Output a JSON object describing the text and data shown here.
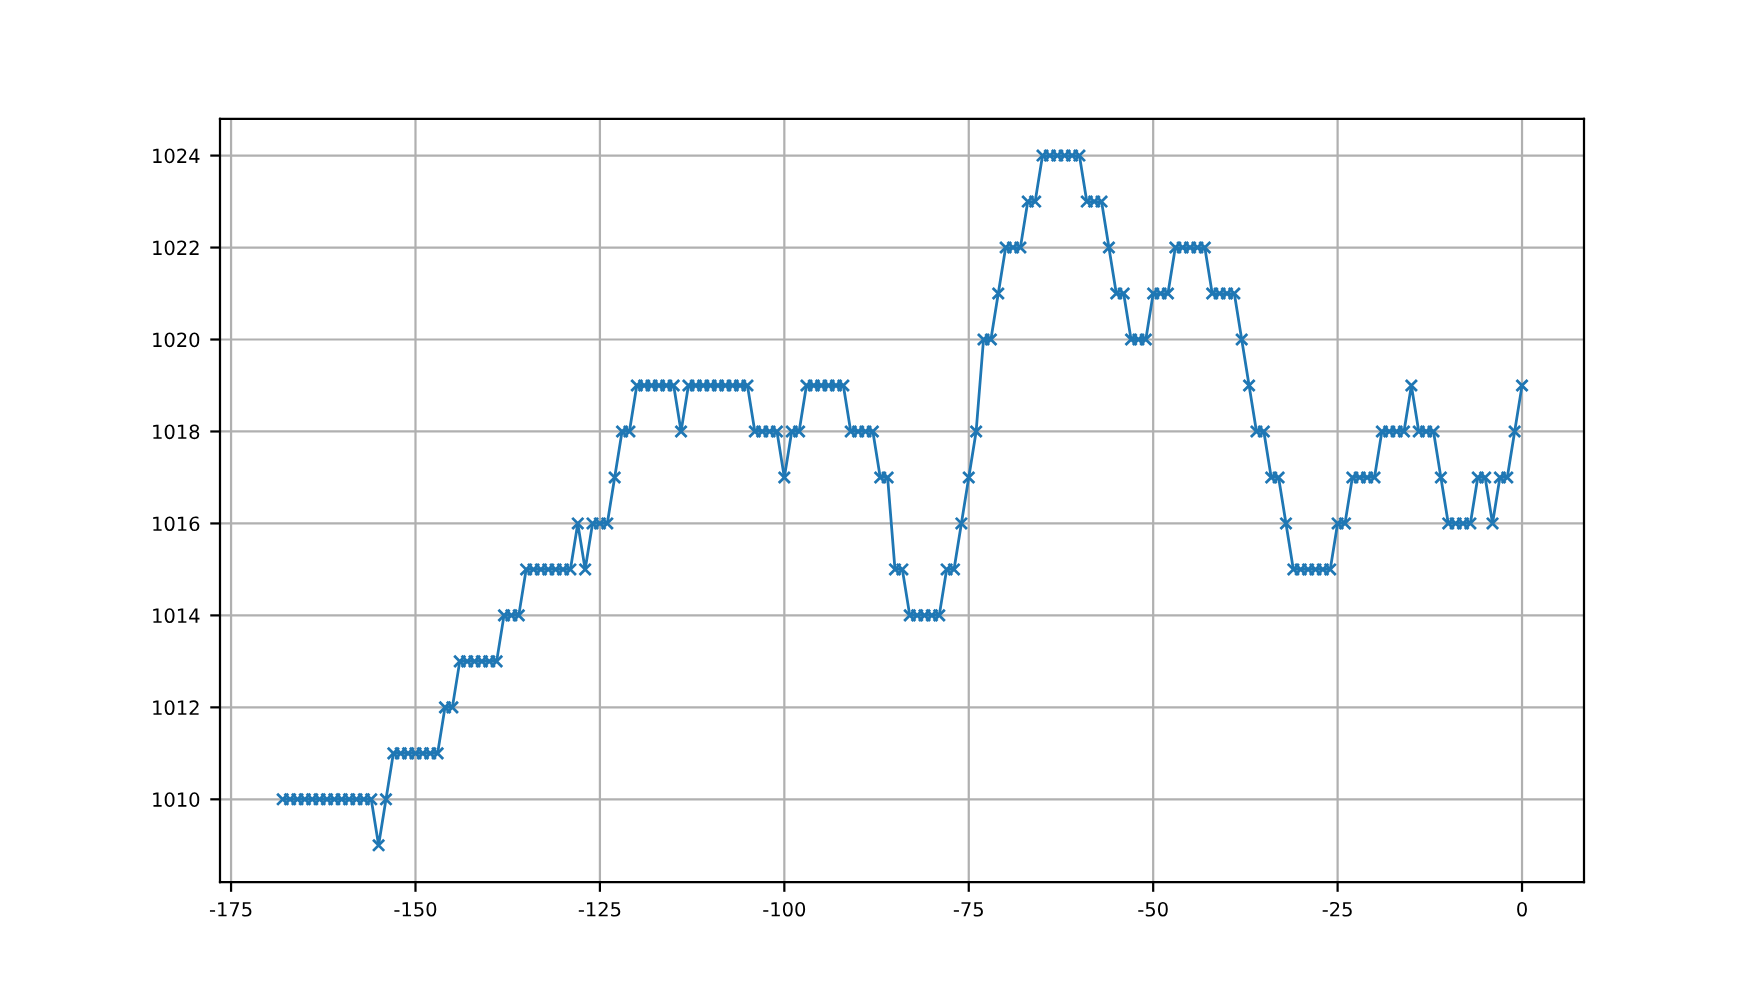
{
  "chart_data": {
    "type": "line",
    "marker": "cross",
    "grid": true,
    "x": [
      -168,
      -167,
      -166,
      -165,
      -164,
      -163,
      -162,
      -161,
      -160,
      -159,
      -158,
      -157,
      -156,
      -155,
      -154,
      -153,
      -152,
      -151,
      -150,
      -149,
      -148,
      -147,
      -146,
      -145,
      -144,
      -143,
      -142,
      -141,
      -140,
      -139,
      -138,
      -137,
      -136,
      -135,
      -134,
      -133,
      -132,
      -131,
      -130,
      -129,
      -128,
      -127,
      -126,
      -125,
      -124,
      -123,
      -122,
      -121,
      -120,
      -119,
      -118,
      -117,
      -116,
      -115,
      -114,
      -113,
      -112,
      -111,
      -110,
      -109,
      -108,
      -107,
      -106,
      -105,
      -104,
      -103,
      -102,
      -101,
      -100,
      -99,
      -98,
      -97,
      -96,
      -95,
      -94,
      -93,
      -92,
      -91,
      -90,
      -89,
      -88,
      -87,
      -86,
      -85,
      -84,
      -83,
      -82,
      -81,
      -80,
      -79,
      -78,
      -77,
      -76,
      -75,
      -74,
      -73,
      -72,
      -71,
      -70,
      -69,
      -68,
      -67,
      -66,
      -65,
      -64,
      -63,
      -62,
      -61,
      -60,
      -59,
      -58,
      -57,
      -56,
      -55,
      -54,
      -53,
      -52,
      -51,
      -50,
      -49,
      -48,
      -47,
      -46,
      -45,
      -44,
      -43,
      -42,
      -41,
      -40,
      -39,
      -38,
      -37,
      -36,
      -35,
      -34,
      -33,
      -32,
      -31,
      -30,
      -29,
      -28,
      -27,
      -26,
      -25,
      -24,
      -23,
      -22,
      -21,
      -20,
      -19,
      -18,
      -17,
      -16,
      -15,
      -14,
      -13,
      -12,
      -11,
      -10,
      -9,
      -8,
      -7,
      -6,
      -5,
      -4,
      -3,
      -2,
      -1,
      0
    ],
    "series": [
      {
        "color": "#1f77b4",
        "values": [
          1010,
          1010,
          1010,
          1010,
          1010,
          1010,
          1010,
          1010,
          1010,
          1010,
          1010,
          1010,
          1010,
          1009,
          1010,
          1011,
          1011,
          1011,
          1011,
          1011,
          1011,
          1011,
          1012,
          1012,
          1013,
          1013,
          1013,
          1013,
          1013,
          1013,
          1014,
          1014,
          1014,
          1015,
          1015,
          1015,
          1015,
          1015,
          1015,
          1015,
          1016,
          1015,
          1016,
          1016,
          1016,
          1017,
          1018,
          1018,
          1019,
          1019,
          1019,
          1019,
          1019,
          1019,
          1018,
          1019,
          1019,
          1019,
          1019,
          1019,
          1019,
          1019,
          1019,
          1019,
          1018,
          1018,
          1018,
          1018,
          1017,
          1018,
          1018,
          1019,
          1019,
          1019,
          1019,
          1019,
          1019,
          1018,
          1018,
          1018,
          1018,
          1017,
          1017,
          1015,
          1015,
          1014,
          1014,
          1014,
          1014,
          1014,
          1015,
          1015,
          1016,
          1017,
          1018,
          1020,
          1020,
          1021,
          1022,
          1022,
          1022,
          1023,
          1023,
          1024,
          1024,
          1024,
          1024,
          1024,
          1024,
          1023,
          1023,
          1023,
          1022,
          1021,
          1021,
          1020,
          1020,
          1020,
          1021,
          1021,
          1021,
          1022,
          1022,
          1022,
          1022,
          1022,
          1021,
          1021,
          1021,
          1021,
          1020,
          1019,
          1018,
          1018,
          1017,
          1017,
          1016,
          1015,
          1015,
          1015,
          1015,
          1015,
          1015,
          1016,
          1016,
          1017,
          1017,
          1017,
          1017,
          1018,
          1018,
          1018,
          1018,
          1019,
          1018,
          1018,
          1018,
          1017,
          1016,
          1016,
          1016,
          1016,
          1017,
          1017,
          1016,
          1017,
          1017,
          1018,
          1019
        ]
      }
    ],
    "xlim": [
      -176.5,
      8.4
    ],
    "xticks": [
      -175,
      -150,
      -125,
      -100,
      -75,
      -50,
      -25,
      0
    ],
    "ylim": [
      1008.2,
      1024.8
    ],
    "yticks": [
      1010,
      1012,
      1014,
      1016,
      1018,
      1020,
      1022,
      1024
    ]
  }
}
